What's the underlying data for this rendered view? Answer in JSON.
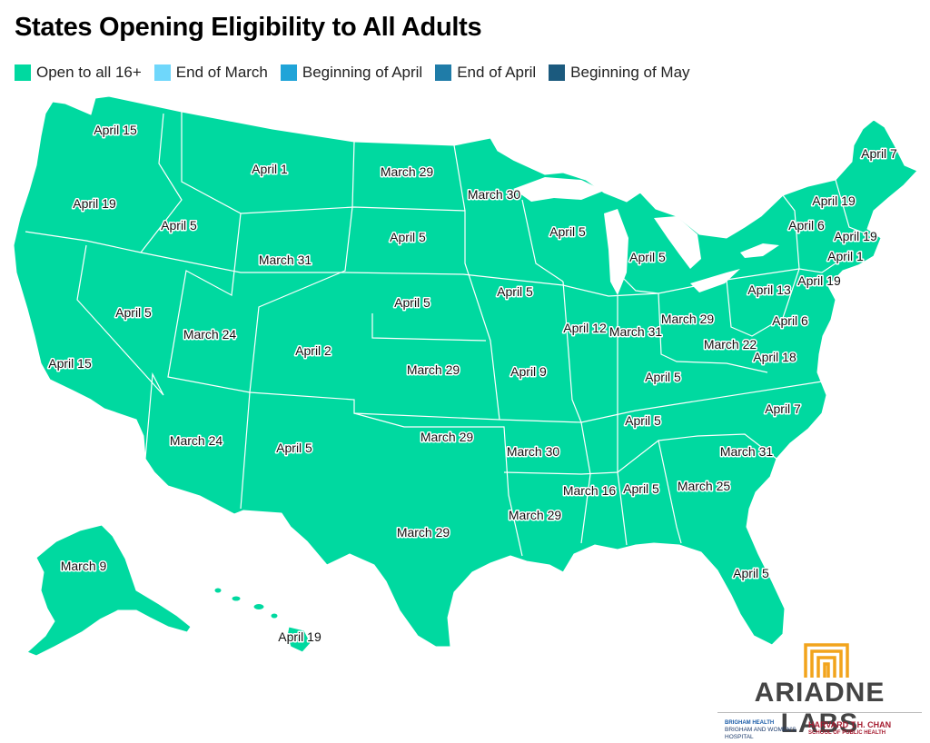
{
  "title": "States Opening Eligibility to All Adults",
  "colors": {
    "land": "#00d9a0",
    "border": "#ffffff",
    "brand_orange": "#f2a41c"
  },
  "legend": [
    {
      "label": "Open to all 16+",
      "color": "#00d9a0"
    },
    {
      "label": "End of March",
      "color": "#6fd7fb"
    },
    {
      "label": "Beginning of April",
      "color": "#20a4d8"
    },
    {
      "label": "End of April",
      "color": "#1f7ca8"
    },
    {
      "label": "Beginning of May",
      "color": "#1b5a7e"
    }
  ],
  "state_labels": [
    {
      "state": "Washington",
      "text": "April 15"
    },
    {
      "state": "Oregon",
      "text": "April 19"
    },
    {
      "state": "California",
      "text": "April 15"
    },
    {
      "state": "Idaho",
      "text": "April 5"
    },
    {
      "state": "Nevada",
      "text": "April 5"
    },
    {
      "state": "Montana",
      "text": "April 1"
    },
    {
      "state": "Wyoming",
      "text": "March 31"
    },
    {
      "state": "Utah",
      "text": "March 24"
    },
    {
      "state": "Colorado",
      "text": "April 2"
    },
    {
      "state": "Arizona",
      "text": "March 24"
    },
    {
      "state": "New Mexico",
      "text": "April 5"
    },
    {
      "state": "North Dakota",
      "text": "March 29"
    },
    {
      "state": "South Dakota",
      "text": "April 5"
    },
    {
      "state": "Nebraska",
      "text": "April 5"
    },
    {
      "state": "Kansas",
      "text": "March 29"
    },
    {
      "state": "Oklahoma",
      "text": "March 29"
    },
    {
      "state": "Texas",
      "text": "March 29"
    },
    {
      "state": "Minnesota",
      "text": "March 30"
    },
    {
      "state": "Iowa",
      "text": "April 5"
    },
    {
      "state": "Missouri",
      "text": "April 9"
    },
    {
      "state": "Arkansas",
      "text": "March 30"
    },
    {
      "state": "Louisiana",
      "text": "March 29"
    },
    {
      "state": "Wisconsin",
      "text": "April 5"
    },
    {
      "state": "Illinois",
      "text": "April 12"
    },
    {
      "state": "Michigan",
      "text": "April 5"
    },
    {
      "state": "Indiana",
      "text": "March 31"
    },
    {
      "state": "Ohio",
      "text": "March 29"
    },
    {
      "state": "Kentucky",
      "text": "April 5"
    },
    {
      "state": "Tennessee",
      "text": "April 5"
    },
    {
      "state": "Mississippi",
      "text": "March 16"
    },
    {
      "state": "Alabama",
      "text": "April 5"
    },
    {
      "state": "Georgia",
      "text": "March 25"
    },
    {
      "state": "Florida",
      "text": "April 5"
    },
    {
      "state": "South Carolina",
      "text": "March 31"
    },
    {
      "state": "North Carolina",
      "text": "April 7"
    },
    {
      "state": "Virginia",
      "text": "April 18"
    },
    {
      "state": "West Virginia",
      "text": "March 22"
    },
    {
      "state": "Pennsylvania",
      "text": "April 13"
    },
    {
      "state": "Maryland",
      "text": "April 6"
    },
    {
      "state": "New Jersey",
      "text": "April 19"
    },
    {
      "state": "New York",
      "text": "April 6"
    },
    {
      "state": "Vermont",
      "text": "April 19"
    },
    {
      "state": "Massachusetts",
      "text": "April 19"
    },
    {
      "state": "Connecticut",
      "text": "April 1"
    },
    {
      "state": "Maine",
      "text": "April 7"
    },
    {
      "state": "Alaska",
      "text": "March 9"
    },
    {
      "state": "Hawaii",
      "text": "April 19"
    }
  ],
  "branding": {
    "logo_text": "ARIADNE LABS",
    "partner1_head": "BRIGHAM HEALTH",
    "partner1_body": "BRIGHAM AND WOMEN'S HOSPITAL",
    "partner2_head": "HARVARD T.H. CHAN",
    "partner2_sub": "SCHOOL OF PUBLIC HEALTH"
  }
}
